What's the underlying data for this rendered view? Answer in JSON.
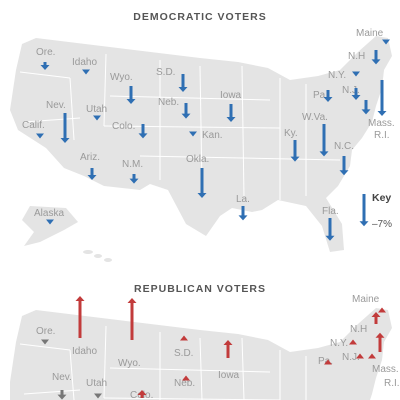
{
  "colors": {
    "dem": "#2f6fb3",
    "rep": "#c23b3b",
    "neutral": "#777777",
    "land": "#e4e4e4"
  },
  "dem": {
    "title": "DEMOCRATIC VOTERS",
    "key": {
      "title": "Key",
      "value": "–7%"
    },
    "states": [
      {
        "state": "Ore.",
        "change": -0.6,
        "size": "arrow"
      },
      {
        "state": "Idaho",
        "change": -0.4,
        "size": "arrow"
      },
      {
        "state": "Calif.",
        "change": -0.3,
        "size": "small"
      },
      {
        "state": "Nev.",
        "change": -2.5,
        "size": "arrow"
      },
      {
        "state": "Utah",
        "change": -0.2,
        "size": "small"
      },
      {
        "state": "Wyo.",
        "change": -1.5,
        "size": "arrow"
      },
      {
        "state": "Colo.",
        "change": -1.2,
        "size": "arrow"
      },
      {
        "state": "Ariz.",
        "change": -1.0,
        "size": "arrow"
      },
      {
        "state": "N.M.",
        "change": -0.8,
        "size": "arrow"
      },
      {
        "state": "S.D.",
        "change": -1.5,
        "size": "arrow"
      },
      {
        "state": "Neb.",
        "change": -1.3,
        "size": "arrow"
      },
      {
        "state": "Kan.",
        "change": -0.2,
        "size": "small"
      },
      {
        "state": "Okla.",
        "change": -2.5,
        "size": "arrow"
      },
      {
        "state": "Iowa",
        "change": -1.5,
        "size": "arrow"
      },
      {
        "state": "La.",
        "change": -1.2,
        "size": "arrow"
      },
      {
        "state": "Ky.",
        "change": -1.8,
        "size": "arrow"
      },
      {
        "state": "W.Va.",
        "change": -2.7,
        "size": "arrow"
      },
      {
        "state": "N.C.",
        "change": -1.6,
        "size": "arrow"
      },
      {
        "state": "Fla.",
        "change": -1.9,
        "size": "arrow"
      },
      {
        "state": "Alaska",
        "change": -0.2,
        "size": "small"
      },
      {
        "state": "Pa.",
        "change": -1.0,
        "size": "arrow"
      },
      {
        "state": "N.Y.",
        "change": -0.3,
        "size": "small"
      },
      {
        "state": "N.J.",
        "change": -1.0,
        "size": "arrow"
      },
      {
        "state": "N.H",
        "change": -1.2,
        "size": "arrow"
      },
      {
        "state": "Maine",
        "change": -0.4,
        "size": "small"
      },
      {
        "state": "Mass.",
        "change": -3.0,
        "size": "arrow"
      },
      {
        "state": "R.I.",
        "change": -1.2,
        "size": "arrow"
      }
    ]
  },
  "rep": {
    "title": "REPUBLICAN VOTERS",
    "states": [
      {
        "state": "Ore.",
        "change": -0.2,
        "size": "small"
      },
      {
        "state": "Idaho",
        "change": 3.5,
        "size": "arrow"
      },
      {
        "state": "Wyo.",
        "change": 3.5,
        "size": "arrow"
      },
      {
        "state": "Nev.",
        "change": -0.8,
        "size": "arrow"
      },
      {
        "state": "Utah",
        "change": -0.4,
        "size": "arrow"
      },
      {
        "state": "Colo.",
        "change": 0.5,
        "size": "arrow"
      },
      {
        "state": "S.D.",
        "change": 0.2,
        "size": "small"
      },
      {
        "state": "Neb.",
        "change": 0.2,
        "size": "small"
      },
      {
        "state": "Iowa",
        "change": 1.5,
        "size": "arrow"
      },
      {
        "state": "Maine",
        "change": 0.2,
        "size": "small"
      },
      {
        "state": "N.H",
        "change": 1.0,
        "size": "arrow"
      },
      {
        "state": "N.Y.",
        "change": 0.2,
        "size": "small"
      },
      {
        "state": "Pa.",
        "change": 0.2,
        "size": "small"
      },
      {
        "state": "N.J.",
        "change": 0.2,
        "size": "small"
      },
      {
        "state": "Mass.",
        "change": 1.6,
        "size": "arrow"
      },
      {
        "state": "R.I.",
        "change": 0.2,
        "size": "small"
      }
    ]
  }
}
